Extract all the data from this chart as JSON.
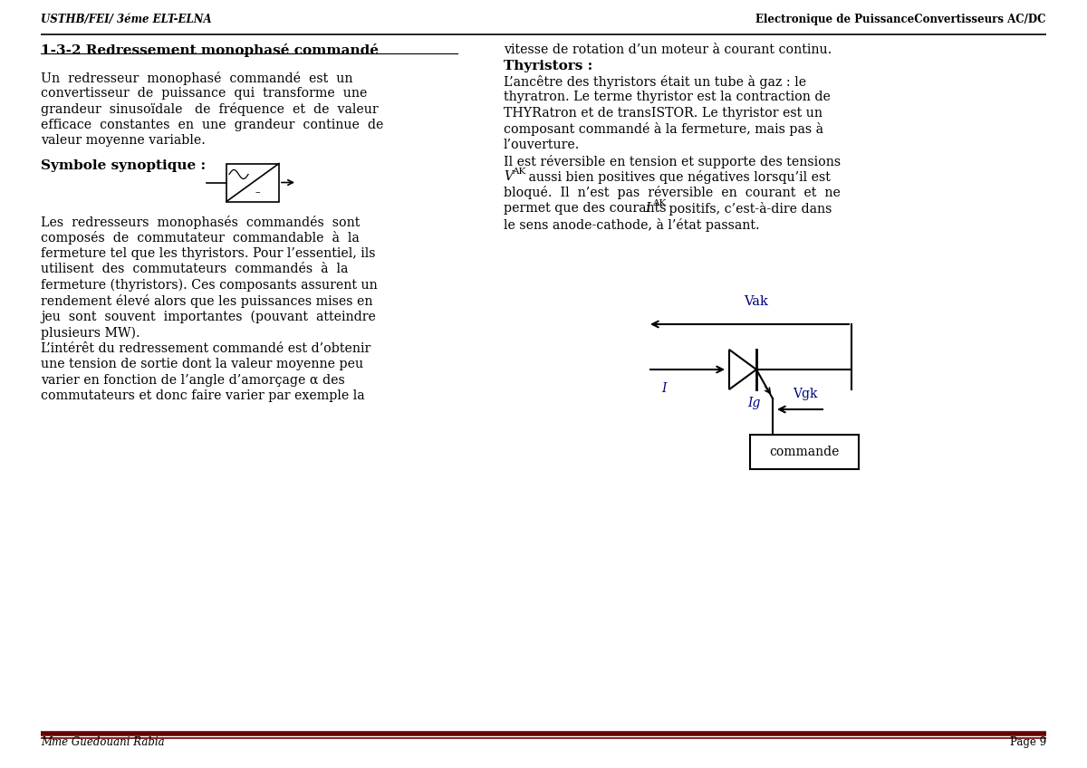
{
  "bg_color": "#ffffff",
  "header_left": "USTHB/FEI/ 3éme ELT-ELNA",
  "header_right": "Electronique de PuissanceConvertisseurs AC/DC",
  "footer_left": "Mme Guedouani Rabia",
  "footer_right": "Page 9",
  "title": "1-3-2 Redressement monophasé commandé",
  "col1_para1": [
    "Un  redresseur  monophasé  commandé  est  un",
    "convertisseur  de  puissance  qui  transforme  une",
    "grandeur  sinusoïdale   de  fréquence  et  de  valeur",
    "efficace  constantes  en  une  grandeur  continue  de",
    "valeur moyenne variable."
  ],
  "symbole_label": "Symbole synoptique :",
  "col1_para2": [
    "Les  redresseurs  monophasés  commandés  sont",
    "composés  de  commutateur  commandable  à  la",
    "fermeture tel que les thyristors. Pour l’essentiel, ils",
    "utilisent  des  commutateurs  commandés  à  la",
    "fermeture (thyristors). Ces composants assurent un",
    "rendement élevé alors que les puissances mises en",
    "jeu  sont  souvent  importantes  (pouvant  atteindre",
    "plusieurs MW).",
    "L’intérêt du redressement commandé est d’obtenir",
    "une tension de sortie dont la valeur moyenne peu",
    "varier en fonction de l’angle d’amorçage α des",
    "commutateurs et donc faire varier par exemple la"
  ],
  "col2_line1": "vitesse de rotation d’un moteur à courant continu.",
  "thyristors_title": "Thyristors :",
  "col2_para": [
    "L’ancêtre des thyristors était un tube à gaz : le",
    "thyratron. Le terme thyristor est la contraction de",
    "THYRatron et de transISTOR. Le thyristor est un",
    "composant commandé à la fermeture, mais pas à",
    "l’ouverture.",
    "Il est réversible en tension et supporte des tensions",
    "V_AK aussi bien positives que négatives lorsqu’il est",
    "bloqué.  Il  n’est  pas  réversible  en  courant  et  ne",
    "permet que des courants I_AK positifs, c’est-à-dire dans",
    "le sens anode-cathode, à l’état passant."
  ],
  "accent_color": "#6B0000",
  "diagram_blue": "#000080"
}
